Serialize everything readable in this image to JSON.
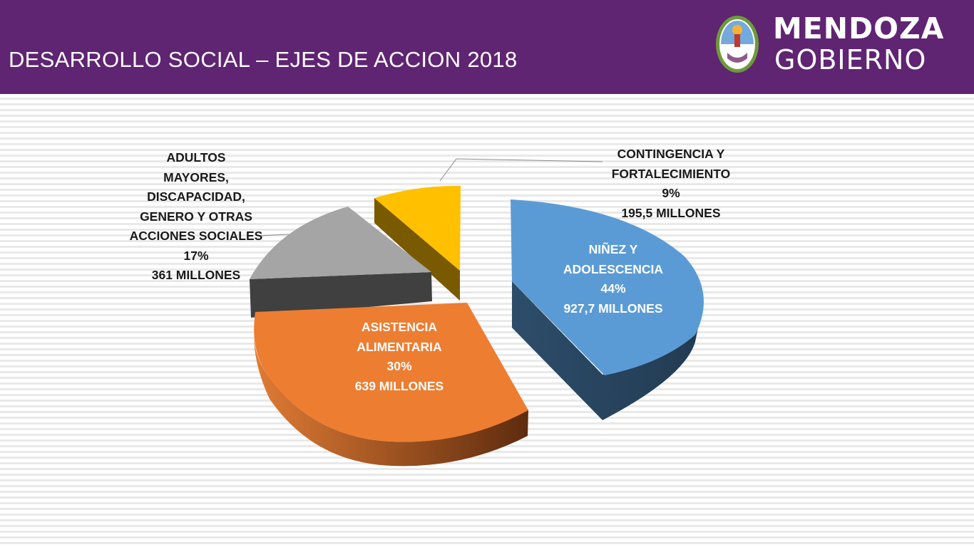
{
  "header": {
    "title": "DESARROLLO SOCIAL – EJES DE ACCION 2018",
    "logo_line1": "MENDOZA",
    "logo_line2": "GOBIERNO",
    "logo_icon": "mendoza-coat-of-arms-icon"
  },
  "colors": {
    "header_bg": "#5f2472",
    "ninez": "#5b9bd5",
    "asistencia": "#ed7d31",
    "adultos": "#a5a5a5",
    "contingencia": "#ffc000"
  },
  "chart_data": {
    "type": "pie",
    "style": "3d-exploded",
    "title": "",
    "slices": [
      {
        "label_lines": [
          "NIÑEZ Y",
          "ADOLESCENCIA"
        ],
        "percent_label": "44%",
        "amount_label": "927,7 MILLONES",
        "value": 927.7,
        "percent": 44,
        "color": "#5b9bd5"
      },
      {
        "label_lines": [
          "ASISTENCIA",
          "ALIMENTARIA"
        ],
        "percent_label": "30%",
        "amount_label": "639 MILLONES",
        "value": 639,
        "percent": 30,
        "color": "#ed7d31"
      },
      {
        "label_lines": [
          "ADULTOS",
          "MAYORES,",
          "DISCAPACIDAD,",
          "GENERO Y OTRAS",
          "ACCIONES SOCIALES"
        ],
        "percent_label": "17%",
        "amount_label": "361 MILLONES",
        "value": 361,
        "percent": 17,
        "color": "#a5a5a5"
      },
      {
        "label_lines": [
          "CONTINGENCIA Y",
          "FORTALECIMIENTO"
        ],
        "percent_label": "9%",
        "amount_label": "195,5 MILLONES",
        "value": 195.5,
        "percent": 9,
        "color": "#ffc000"
      }
    ]
  }
}
